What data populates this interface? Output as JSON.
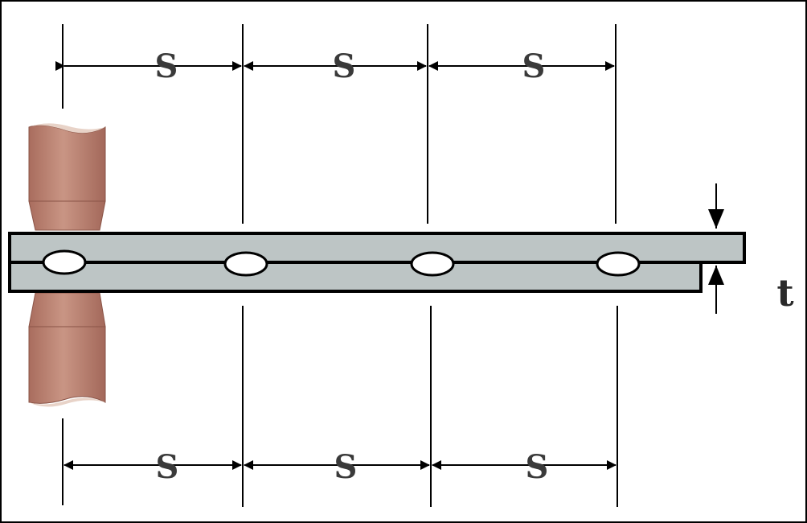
{
  "diagram": {
    "spacing_label": "S",
    "thickness_label": "t",
    "colors": {
      "sheet_fill": "#bdc5c5",
      "outline": "#000000",
      "electrode_light": "#c99584",
      "electrode_dark": "#9c5f50",
      "weld_nugget": "#ffffff"
    },
    "icons": [
      "electrode-top-icon",
      "electrode-bottom-icon"
    ]
  }
}
